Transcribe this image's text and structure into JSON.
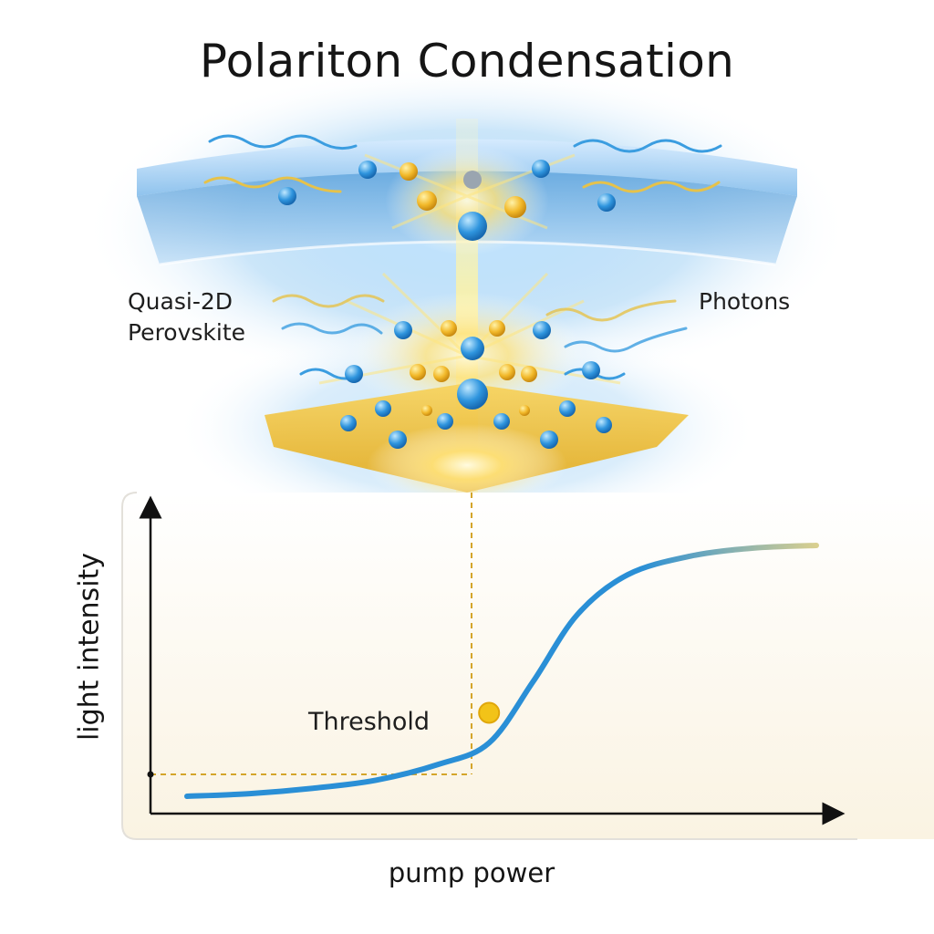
{
  "title": "Polariton Condensation",
  "labels": {
    "material": "Quasi-2D\nPerovskite",
    "photons": "Photons",
    "threshold": "Threshold"
  },
  "chart_data": {
    "type": "line",
    "xlabel": "pump power",
    "ylabel": "light intensity",
    "series": [
      {
        "x": [
          0.0,
          0.1,
          0.2,
          0.3,
          0.4,
          0.48,
          0.55,
          0.62,
          0.7,
          0.8,
          0.9,
          1.0
        ],
        "y": [
          0.02,
          0.03,
          0.05,
          0.08,
          0.14,
          0.22,
          0.45,
          0.7,
          0.85,
          0.92,
          0.95,
          0.96
        ]
      }
    ],
    "threshold": {
      "x": 0.48,
      "y": 0.22,
      "label": "Threshold"
    },
    "grid": false
  },
  "colors": {
    "curve": "#2a8fd6",
    "curve_end": "#d9cf8f",
    "threshold_dot": "#f2c318",
    "dashed_guide": "#d4a52a",
    "chart_bg": "#fbf5e6",
    "slab_blue": "#5aa6e0",
    "base_gold": "#f0c23a"
  }
}
